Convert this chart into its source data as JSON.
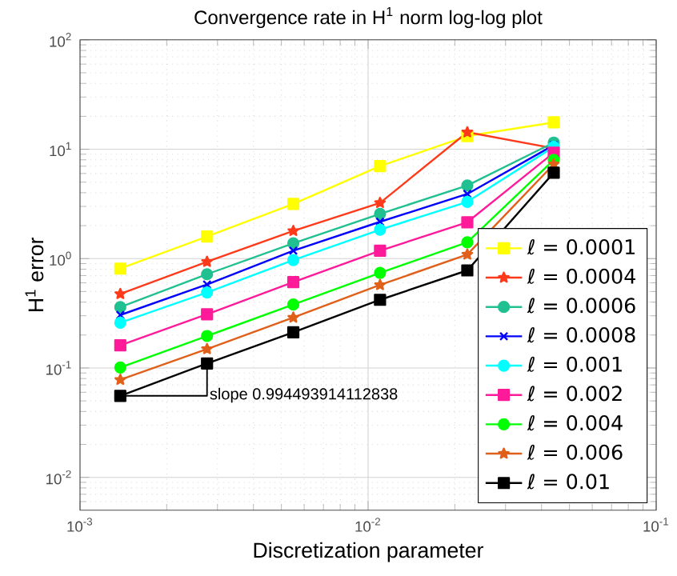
{
  "chart_data": {
    "type": "line",
    "title": "Convergence rate in H$^{1}$ norm log-log plot",
    "xlabel": "Discretization parameter",
    "ylabel": "H$^{1}$ error",
    "x": [
      0.00138,
      0.00276,
      0.0055,
      0.011,
      0.0221,
      0.0441
    ],
    "series": [
      {
        "name": "ℓ = 0.0001",
        "color": "#ffff00",
        "marker": "square",
        "values": [
          0.81,
          1.59,
          3.16,
          7.0,
          13.2,
          17.6
        ]
      },
      {
        "name": "ℓ = 0.0004",
        "color": "#ff3a1a",
        "marker": "star",
        "values": [
          0.475,
          0.935,
          1.79,
          3.23,
          14.3,
          10.2
        ]
      },
      {
        "name": "ℓ = 0.0006",
        "color": "#20c090",
        "marker": "circle",
        "values": [
          0.36,
          0.72,
          1.38,
          2.56,
          4.66,
          11.5
        ]
      },
      {
        "name": "ℓ = 0.0008",
        "color": "#0000ff",
        "marker": "cross",
        "values": [
          0.305,
          0.58,
          1.18,
          2.17,
          3.9,
          10.9
        ]
      },
      {
        "name": "ℓ = 0.001",
        "color": "#00ffff",
        "marker": "circle",
        "values": [
          0.259,
          0.49,
          0.97,
          1.84,
          3.3,
          10.5
        ]
      },
      {
        "name": "ℓ = 0.002",
        "color": "#ff1a9a",
        "marker": "square",
        "values": [
          0.161,
          0.31,
          0.61,
          1.18,
          2.15,
          9.3
        ]
      },
      {
        "name": "ℓ = 0.004",
        "color": "#00ff00",
        "marker": "circle",
        "values": [
          0.101,
          0.196,
          0.38,
          0.74,
          1.41,
          8.0
        ]
      },
      {
        "name": "ℓ = 0.006",
        "color": "#e0601a",
        "marker": "star",
        "values": [
          0.078,
          0.149,
          0.289,
          0.574,
          1.09,
          7.3
        ]
      },
      {
        "name": "ℓ = 0.01",
        "color": "#000000",
        "marker": "square",
        "values": [
          0.0556,
          0.11,
          0.212,
          0.42,
          0.78,
          6.1
        ]
      }
    ],
    "annotations": [
      "slope 0.994493914112838"
    ],
    "log": "xy",
    "grid": true,
    "legend": "bottom right",
    "xlim": [
      0.001,
      0.1
    ],
    "xticks": [
      {
        "value": 0.001,
        "label": "10$^{-3}$"
      },
      {
        "value": 0.01,
        "label": "10$^{-2}$"
      },
      {
        "value": 0.1,
        "label": "10$^{-1}$"
      }
    ],
    "ylim": [
      0.005,
      100
    ],
    "yticks": [
      {
        "value": 0.01,
        "label": "10$^{-2}$"
      },
      {
        "value": 0.1,
        "label": "10$^{-1}$"
      },
      {
        "value": 1,
        "label": "10$^{0}$"
      },
      {
        "value": 10,
        "label": "10$^{1}$"
      },
      {
        "value": 100,
        "label": "10$^{2}$"
      }
    ]
  }
}
